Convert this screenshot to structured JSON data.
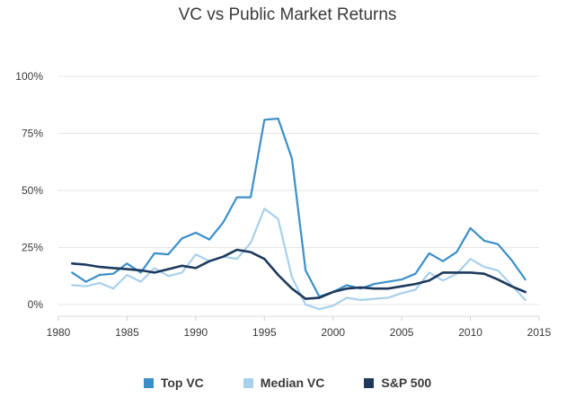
{
  "chart_data": {
    "type": "line",
    "title": "VC vs Public Market Returns",
    "xlabel": "",
    "ylabel": "",
    "xlim": [
      1980,
      2015
    ],
    "ylim": [
      0,
      100
    ],
    "x_ticks": [
      1980,
      1985,
      1990,
      1995,
      2000,
      2005,
      2010,
      2015
    ],
    "x_tick_labels": [
      "1980",
      "1985",
      "1990",
      "1995",
      "2000",
      "2005",
      "2010",
      "2015"
    ],
    "y_ticks": [
      0,
      25,
      50,
      75,
      100
    ],
    "y_tick_labels": [
      "0%",
      "25%",
      "50%",
      "75%",
      "100%"
    ],
    "grid": "horizontal",
    "legend_position": "bottom",
    "x": [
      1981,
      1982,
      1983,
      1984,
      1985,
      1986,
      1987,
      1988,
      1989,
      1990,
      1991,
      1992,
      1993,
      1994,
      1995,
      1996,
      1997,
      1998,
      1999,
      2000,
      2001,
      2002,
      2003,
      2004,
      2005,
      2006,
      2007,
      2008,
      2009,
      2010,
      2011,
      2012,
      2013,
      2014
    ],
    "series": [
      {
        "name": "Top VC",
        "color": "#3b8fc9",
        "values": [
          14,
          10,
          13,
          13.5,
          18,
          14,
          22.5,
          22,
          29,
          31.5,
          28.5,
          36,
          47,
          47,
          81,
          81.5,
          64,
          15,
          3.5,
          5.5,
          8.5,
          7,
          9,
          10,
          11,
          13.5,
          22.5,
          19,
          23,
          33.5,
          28,
          26.5,
          19.5,
          11
        ]
      },
      {
        "name": "Median VC",
        "color": "#a8d0ec",
        "values": [
          8.5,
          8,
          9.5,
          7,
          13,
          10,
          16,
          12.5,
          14,
          22,
          19,
          21,
          20,
          27,
          42,
          37.5,
          12,
          0,
          -2,
          -0.5,
          3,
          2,
          2.5,
          3,
          5,
          6.5,
          14,
          10.5,
          13.5,
          20,
          16.5,
          15,
          8.5,
          2
        ]
      },
      {
        "name": "S&P 500",
        "color": "#1d3a5c",
        "values": [
          18,
          17.5,
          16.5,
          16,
          15.5,
          15,
          14,
          15.5,
          17,
          16,
          19,
          21,
          24,
          23,
          20,
          13,
          7,
          2.5,
          3,
          5.5,
          7,
          7.5,
          7,
          7,
          8,
          9,
          10.5,
          14,
          14,
          14,
          13.5,
          11,
          8,
          5.5
        ]
      }
    ]
  }
}
